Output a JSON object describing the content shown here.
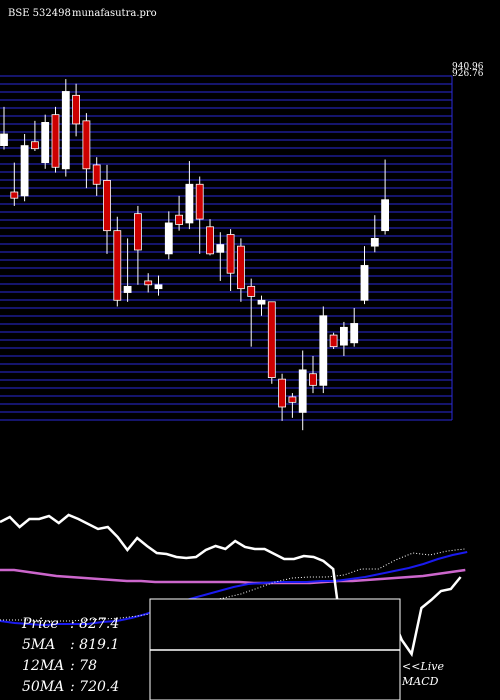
{
  "header": {
    "symbol_title": "BSE 532498",
    "site": "munafasutra.pro"
  },
  "stats": [
    {
      "label": "Price",
      "value": ": 827.4"
    },
    {
      "label": "5MA",
      "value": ": 819.1"
    },
    {
      "label": "12MA",
      "value": ": 78"
    },
    {
      "label": "50MA",
      "value": ": 720.4"
    }
  ],
  "live_label": "<<Live",
  "macd_label": "MACD",
  "colors": {
    "background": "#000000",
    "bull": "#ffffff",
    "bear": "#cc0000",
    "grid": "#2a2ad8",
    "ma_long": "#cc66cc",
    "ma_mid": "#1a1aee",
    "osc": "#ffffff"
  },
  "chart_data": {
    "type": "candlestick",
    "ylabels_top": [
      "940.96",
      "926.76"
    ],
    "candles": [
      {
        "o": 830,
        "c": 845,
        "h": 880,
        "l": 825
      },
      {
        "o": 770,
        "c": 762,
        "h": 808,
        "l": 752
      },
      {
        "o": 765,
        "c": 830,
        "h": 845,
        "l": 758
      },
      {
        "o": 835,
        "c": 826,
        "h": 862,
        "l": 823
      },
      {
        "o": 808,
        "c": 860,
        "h": 870,
        "l": 800
      },
      {
        "o": 870,
        "c": 802,
        "h": 880,
        "l": 795
      },
      {
        "o": 800,
        "c": 900,
        "h": 916,
        "l": 790
      },
      {
        "o": 895,
        "c": 858,
        "h": 910,
        "l": 842
      },
      {
        "o": 862,
        "c": 800,
        "h": 872,
        "l": 775
      },
      {
        "o": 805,
        "c": 780,
        "h": 815,
        "l": 765
      },
      {
        "o": 785,
        "c": 720,
        "h": 805,
        "l": 690
      },
      {
        "o": 720,
        "c": 630,
        "h": 738,
        "l": 622
      },
      {
        "o": 640,
        "c": 648,
        "h": 710,
        "l": 628
      },
      {
        "o": 742,
        "c": 695,
        "h": 752,
        "l": 650
      },
      {
        "o": 655,
        "c": 650,
        "h": 665,
        "l": 640
      },
      {
        "o": 645,
        "c": 650,
        "h": 662,
        "l": 636
      },
      {
        "o": 690,
        "c": 730,
        "h": 745,
        "l": 683
      },
      {
        "o": 740,
        "c": 728,
        "h": 765,
        "l": 720
      },
      {
        "o": 730,
        "c": 780,
        "h": 810,
        "l": 722
      },
      {
        "o": 780,
        "c": 735,
        "h": 790,
        "l": 690
      },
      {
        "o": 725,
        "c": 690,
        "h": 735,
        "l": 688
      },
      {
        "o": 692,
        "c": 702,
        "h": 718,
        "l": 655
      },
      {
        "o": 715,
        "c": 665,
        "h": 722,
        "l": 642
      },
      {
        "o": 700,
        "c": 645,
        "h": 710,
        "l": 628
      },
      {
        "o": 648,
        "c": 635,
        "h": 658,
        "l": 570
      },
      {
        "o": 625,
        "c": 630,
        "h": 636,
        "l": 610
      },
      {
        "o": 628,
        "c": 530,
        "h": 628,
        "l": 522
      },
      {
        "o": 528,
        "c": 492,
        "h": 535,
        "l": 474
      },
      {
        "o": 505,
        "c": 498,
        "h": 510,
        "l": 478
      },
      {
        "o": 485,
        "c": 540,
        "h": 565,
        "l": 462
      },
      {
        "o": 535,
        "c": 520,
        "h": 558,
        "l": 510
      },
      {
        "o": 520,
        "c": 610,
        "h": 622,
        "l": 510
      },
      {
        "o": 585,
        "c": 570,
        "h": 588,
        "l": 567
      },
      {
        "o": 572,
        "c": 595,
        "h": 602,
        "l": 558
      },
      {
        "o": 575,
        "c": 600,
        "h": 620,
        "l": 570
      },
      {
        "o": 630,
        "c": 675,
        "h": 700,
        "l": 625
      },
      {
        "o": 700,
        "c": 710,
        "h": 740,
        "l": 692
      },
      {
        "o": 720,
        "c": 760,
        "h": 812,
        "l": 715
      }
    ],
    "oscillator": [
      88,
      93,
      83,
      91,
      91,
      94,
      87,
      95,
      91,
      86,
      81,
      83,
      73,
      60,
      72,
      64,
      57,
      56,
      53,
      52,
      53,
      60,
      64,
      61,
      69,
      63,
      61,
      61,
      56,
      51,
      51,
      54,
      53,
      49,
      41,
      -34,
      -18,
      -53,
      -28,
      -44,
      -6,
      -30,
      -44,
      2,
      10,
      19,
      21,
      33
    ],
    "signal": [
      -11,
      -13,
      -14,
      -15,
      -14,
      -14,
      -14,
      -12,
      -11,
      -8,
      -4,
      1,
      6,
      11,
      15,
      19,
      23,
      26,
      27,
      28,
      28,
      28,
      29,
      29,
      31,
      33,
      36,
      39,
      42,
      46,
      51,
      55,
      58
    ],
    "ma_long": [
      40,
      40,
      38,
      36,
      34,
      33,
      32,
      31,
      30,
      29,
      29,
      28,
      28,
      28,
      28,
      28,
      28,
      28,
      27,
      27,
      27,
      27,
      27,
      28,
      29,
      29,
      30,
      31,
      32,
      33,
      34,
      36,
      38,
      40
    ],
    "dotted": [
      -10,
      -10,
      -10,
      -11,
      -11,
      -10,
      -9,
      -8,
      -6,
      -3,
      1,
      5,
      9,
      12,
      16,
      22,
      28,
      32,
      33,
      33,
      35,
      41,
      41,
      50,
      57,
      55,
      59,
      61
    ]
  }
}
